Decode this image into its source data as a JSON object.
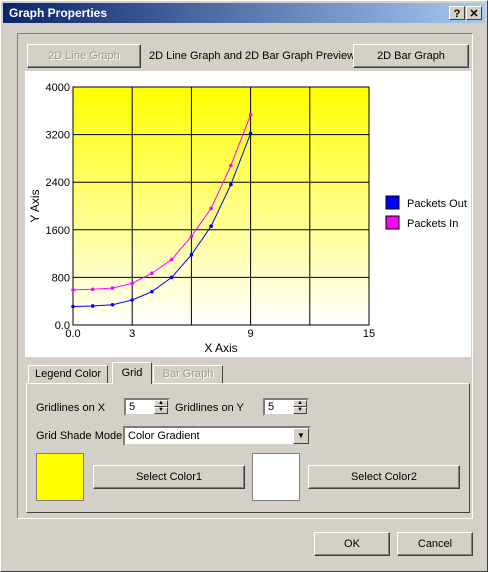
{
  "window": {
    "title": "Graph Properties",
    "help_label": "?",
    "close_label": "✕"
  },
  "preview": {
    "line_button": "2D Line Graph",
    "caption": "2D Line Graph and 2D Bar Graph Preview",
    "bar_button": "2D Bar Graph"
  },
  "chart_data": {
    "type": "line",
    "title": "",
    "xlabel": "X Axis",
    "ylabel": "Y Axis",
    "xlim": [
      0,
      15
    ],
    "ylim": [
      0,
      4000
    ],
    "xticks": [
      "0.0",
      "3",
      "9",
      "15"
    ],
    "yticks": [
      "0.0",
      "800",
      "1600",
      "2400",
      "3200",
      "4000"
    ],
    "grid": true,
    "gridlines_x": 5,
    "gridlines_y": 5,
    "background": {
      "mode": "gradient",
      "top": "#ffff00",
      "bottom": "#ffffff"
    },
    "legend_position": "right",
    "series": [
      {
        "name": "Packets Out",
        "color": "#0000ff",
        "x": [
          0,
          1,
          2,
          3,
          4,
          5,
          6,
          7,
          8,
          9
        ],
        "y": [
          310,
          320,
          340,
          420,
          560,
          800,
          1180,
          1660,
          2360,
          3220
        ]
      },
      {
        "name": "Packets In",
        "color": "#ff00ff",
        "x": [
          0,
          1,
          2,
          3,
          4,
          5,
          6,
          7,
          8,
          9
        ],
        "y": [
          590,
          600,
          620,
          700,
          870,
          1100,
          1490,
          1960,
          2680,
          3530
        ]
      }
    ]
  },
  "tabs": [
    {
      "label": "Legend Color",
      "active": false,
      "disabled": false
    },
    {
      "label": "Grid",
      "active": true,
      "disabled": false
    },
    {
      "label": "Bar Graph",
      "active": false,
      "disabled": true
    }
  ],
  "grid_tab": {
    "gridlines_x_label": "Gridlines on X",
    "gridlines_x_value": "5",
    "gridlines_y_label": "Gridlines on Y",
    "gridlines_y_value": "5",
    "shade_mode_label": "Grid Shade Mode",
    "shade_mode_value": "Color Gradient",
    "color1": "#ffff00",
    "color1_button": "Select Color1",
    "color2": "#ffffff",
    "color2_button": "Select Color2"
  },
  "footer": {
    "ok_label": "OK",
    "cancel_label": "Cancel"
  }
}
